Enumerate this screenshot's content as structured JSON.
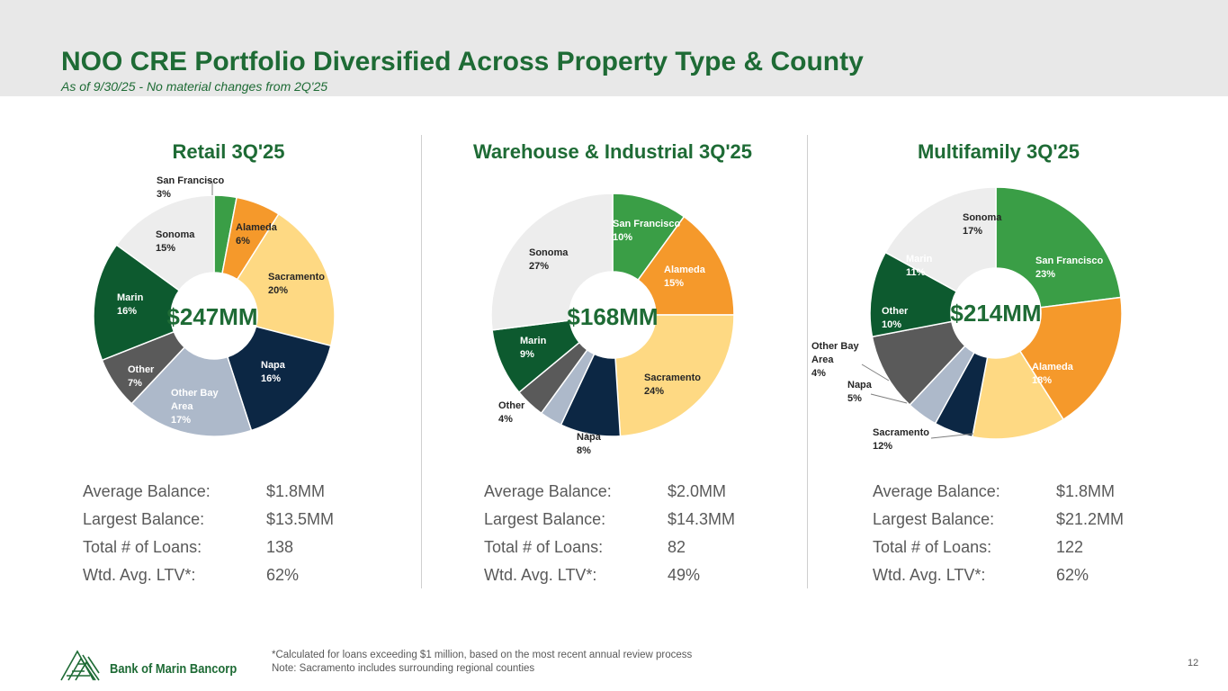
{
  "header": {
    "title": "NOO CRE Portfolio Diversified Across Property Type & County",
    "subtitle": "As of 9/30/25 - No material changes from 2Q'25"
  },
  "colors": {
    "header_bg": "#e8e8e8",
    "brand_green": "#1e6b35",
    "san_francisco": "#3a9e46",
    "alameda": "#f5992b",
    "sacramento": "#fed983",
    "napa": "#0c2744",
    "other_bay_area": "#adb9ca",
    "other": "#5a5a5a",
    "marin": "#0d5a2f",
    "sonoma": "#ededed"
  },
  "chart_data": [
    {
      "type": "pie",
      "title": "Retail 3Q'25",
      "center_label": "$247MM",
      "slices": [
        {
          "name": "San Francisco",
          "value": 3,
          "label": "3%",
          "color": "#3a9e46"
        },
        {
          "name": "Alameda",
          "value": 6,
          "label": "6%",
          "color": "#f5992b"
        },
        {
          "name": "Sacramento",
          "value": 20,
          "label": "20%",
          "color": "#fed983"
        },
        {
          "name": "Napa",
          "value": 16,
          "label": "16%",
          "color": "#0c2744"
        },
        {
          "name": "Other Bay Area",
          "value": 17,
          "label": "17%",
          "color": "#adb9ca"
        },
        {
          "name": "Other",
          "value": 7,
          "label": "7%",
          "color": "#5a5a5a"
        },
        {
          "name": "Marin",
          "value": 16,
          "label": "16%",
          "color": "#0d5a2f"
        },
        {
          "name": "Sonoma",
          "value": 15,
          "label": "15%",
          "color": "#ededed"
        }
      ]
    },
    {
      "type": "pie",
      "title": "Warehouse & Industrial 3Q'25",
      "center_label": "$168MM",
      "slices": [
        {
          "name": "San Francisco",
          "value": 10,
          "label": "10%",
          "color": "#3a9e46"
        },
        {
          "name": "Alameda",
          "value": 15,
          "label": "15%",
          "color": "#f5992b"
        },
        {
          "name": "Sacramento",
          "value": 24,
          "label": "24%",
          "color": "#fed983"
        },
        {
          "name": "Napa",
          "value": 8,
          "label": "8%",
          "color": "#0c2744"
        },
        {
          "name": "Other Bay Area",
          "value": 3,
          "label": "",
          "color": "#adb9ca"
        },
        {
          "name": "Other",
          "value": 4,
          "label": "4%",
          "color": "#5a5a5a"
        },
        {
          "name": "Marin",
          "value": 9,
          "label": "9%",
          "color": "#0d5a2f"
        },
        {
          "name": "Sonoma",
          "value": 27,
          "label": "27%",
          "color": "#ededed"
        }
      ]
    },
    {
      "type": "pie",
      "title": "Multifamily 3Q'25",
      "center_label": "$214MM",
      "slices": [
        {
          "name": "San Francisco",
          "value": 23,
          "label": "23%",
          "color": "#3a9e46"
        },
        {
          "name": "Alameda",
          "value": 18,
          "label": "18%",
          "color": "#f5992b"
        },
        {
          "name": "Sacramento",
          "value": 12,
          "label": "12%",
          "color": "#fed983"
        },
        {
          "name": "Napa",
          "value": 5,
          "label": "5%",
          "color": "#0c2744"
        },
        {
          "name": "Other Bay Area",
          "value": 4,
          "label": "4%",
          "color": "#adb9ca"
        },
        {
          "name": "Other",
          "value": 10,
          "label": "10%",
          "color": "#5a5a5a"
        },
        {
          "name": "Marin",
          "value": 11,
          "label": "11%",
          "color": "#0d5a2f"
        },
        {
          "name": "Sonoma",
          "value": 17,
          "label": "17%",
          "color": "#ededed"
        }
      ]
    }
  ],
  "stats": [
    {
      "rows": [
        {
          "label": "Average Balance:",
          "value": "$1.8MM"
        },
        {
          "label": "Largest Balance:",
          "value": "$13.5MM"
        },
        {
          "label": "Total # of Loans:",
          "value": "138"
        },
        {
          "label": "Wtd. Avg. LTV*:",
          "value": "62%"
        }
      ]
    },
    {
      "rows": [
        {
          "label": "Average Balance:",
          "value": "$2.0MM"
        },
        {
          "label": "Largest Balance:",
          "value": "$14.3MM"
        },
        {
          "label": "Total # of Loans:",
          "value": "82"
        },
        {
          "label": "Wtd. Avg. LTV*:",
          "value": "49%"
        }
      ]
    },
    {
      "rows": [
        {
          "label": "Average Balance:",
          "value": "$1.8MM"
        },
        {
          "label": "Largest Balance:",
          "value": "$21.2MM"
        },
        {
          "label": "Total # of Loans:",
          "value": "122"
        },
        {
          "label": "Wtd. Avg. LTV*:",
          "value": "62%"
        }
      ]
    }
  ],
  "footer": {
    "note1": "*Calculated for loans exceeding $1 million, based on the most recent annual review process",
    "note2": "Note: Sacramento includes surrounding regional counties",
    "page_number": "12",
    "logo_text": "Bank of Marin Bancorp"
  }
}
